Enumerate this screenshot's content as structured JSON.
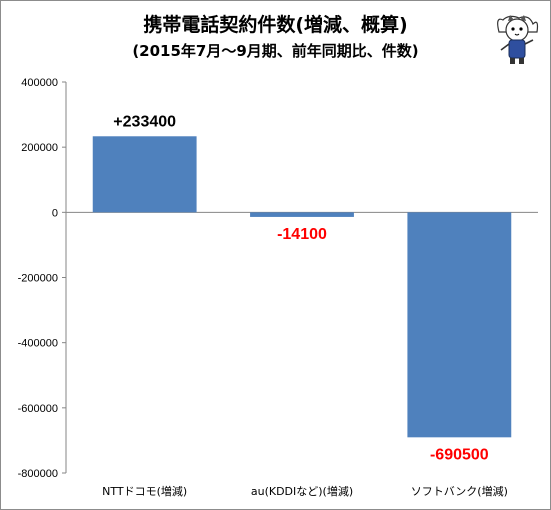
{
  "chart_data": {
    "type": "bar",
    "title": "携帯電話契約件数(増減、概算)",
    "subtitle": "(2015年7月～9月期、前年同期比、件数)",
    "categories": [
      "NTTドコモ(増減)",
      "au(KDDIなど)(増減)",
      "ソフトバンク(増減)"
    ],
    "values": [
      233400,
      -14100,
      -690500
    ],
    "data_labels": [
      "+233400",
      "-14100",
      "-690500"
    ],
    "ylim": [
      -800000,
      400000
    ],
    "yticks": [
      "400000",
      "200000",
      "0",
      "-200000",
      "-400000",
      "-600000",
      "-800000"
    ],
    "ytick_values": [
      400000,
      200000,
      0,
      -200000,
      -400000,
      -600000,
      -800000
    ],
    "xlabel": "",
    "ylabel": "",
    "grid": false,
    "legend": "none"
  },
  "colors": {
    "bar": "#4f81bd",
    "positive_label": "#000000",
    "negative_label": "#ff0000",
    "axis": "#868686"
  },
  "mascot_icon": "cat-mascot-icon"
}
